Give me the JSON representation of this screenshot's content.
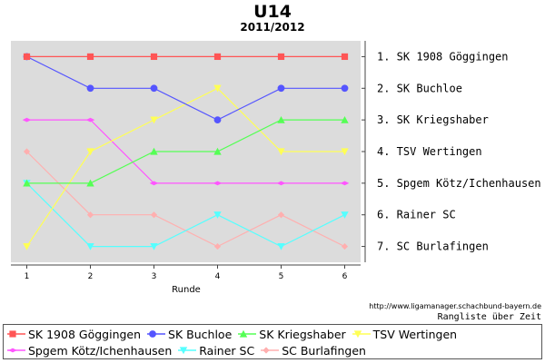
{
  "chart_data": {
    "type": "line",
    "title": "U14",
    "subtitle": "2011/2012",
    "xlabel": "Runde",
    "x": [
      1,
      2,
      3,
      4,
      5,
      6
    ],
    "ylim": [
      7.5,
      0.5
    ],
    "y_inverted": true,
    "grid": false,
    "y_tick_labels": [
      "1. SK 1908 Göggingen",
      "2. SK Buchloe",
      "3. SK Kriegshaber",
      "4. TSV Wertingen",
      "5. Spgem Kötz/Ichenhausen",
      "6. Rainer SC",
      "7. SC Burlafingen"
    ],
    "legend_position": "bottom",
    "series": [
      {
        "name": "SK 1908 Göggingen",
        "color": "#ff5555",
        "marker": "square",
        "values": [
          1,
          1,
          1,
          1,
          1,
          1
        ]
      },
      {
        "name": "SK Buchloe",
        "color": "#5555ff",
        "marker": "circle",
        "values": [
          1,
          2,
          2,
          3,
          2,
          2
        ]
      },
      {
        "name": "SK Kriegshaber",
        "color": "#55ff55",
        "marker": "triangle-up",
        "values": [
          5,
          5,
          4,
          4,
          3,
          3
        ]
      },
      {
        "name": "TSV Wertingen",
        "color": "#ffff55",
        "marker": "triangle-down",
        "values": [
          7,
          4,
          3,
          2,
          4,
          4
        ]
      },
      {
        "name": "Spgem Kötz/Ichenhausen",
        "color": "#ff55ff",
        "marker": "diamond-h",
        "values": [
          3,
          3,
          5,
          5,
          5,
          5
        ]
      },
      {
        "name": "Rainer SC",
        "color": "#55ffff",
        "marker": "triangle-down",
        "values": [
          5,
          7,
          7,
          6,
          7,
          6
        ]
      },
      {
        "name": "SC Burlafingen",
        "color": "#ffafaf",
        "marker": "diamond",
        "values": [
          4,
          6,
          6,
          7,
          6,
          7
        ]
      }
    ]
  },
  "source_text": "http://www.ligamanager.schachbund-bayern.de",
  "footnote": "Rangliste über Zeit"
}
